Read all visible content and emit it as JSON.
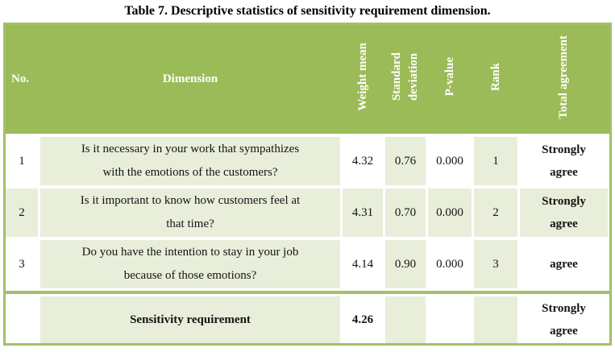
{
  "title": "Table 7. Descriptive statistics of sensitivity requirement dimension.",
  "colors": {
    "header_green": "#9bbb59",
    "light_green_band": "#e8eeda",
    "border_green": "#a3c06a",
    "header_text": "#ffffff",
    "body_text": "#141414"
  },
  "columns": {
    "no": "No.",
    "dimension": "Dimension",
    "weight_mean": "Weight mean",
    "std_deviation": "Standard\ndeviation",
    "p_value": "P-value",
    "rank": "Rank",
    "total_agreement": "Total agreement"
  },
  "rows": [
    {
      "no": "1",
      "dimension": "Is it necessary in your work that sympathizes\nwith the emotions of the customers?",
      "weight_mean": "4.32",
      "std_deviation": "0.76",
      "p_value": "0.000",
      "rank": "1",
      "total_agreement": "Strongly\nagree"
    },
    {
      "no": "2",
      "dimension": "Is it important to know how customers feel at\nthat time?",
      "weight_mean": "4.31",
      "std_deviation": "0.70",
      "p_value": "0.000",
      "rank": "2",
      "total_agreement": "Strongly\nagree"
    },
    {
      "no": "3",
      "dimension": "Do you have the intention to stay in your job\nbecause of those emotions?",
      "weight_mean": "4.14",
      "std_deviation": "0.90",
      "p_value": "0.000",
      "rank": "3",
      "total_agreement": "agree"
    }
  ],
  "summary": {
    "no": "",
    "dimension": "Sensitivity requirement",
    "weight_mean": "4.26",
    "std_deviation": "",
    "p_value": "",
    "rank": "",
    "total_agreement": "Strongly\nagree"
  }
}
